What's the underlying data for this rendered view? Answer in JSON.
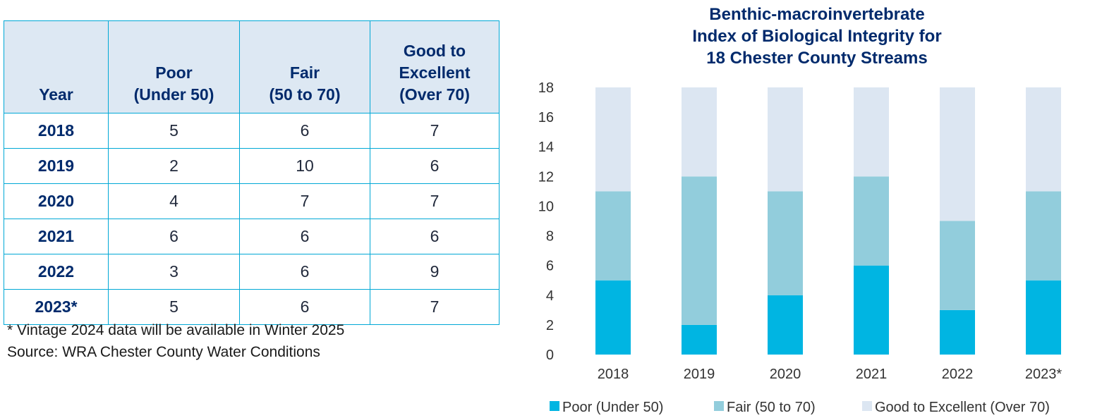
{
  "table": {
    "headers": [
      [
        "Year"
      ],
      [
        "Poor",
        "(Under 50)"
      ],
      [
        "Fair",
        "(50 to 70)"
      ],
      [
        "Good to",
        "Excellent",
        "(Over 70)"
      ]
    ],
    "rows": [
      [
        "2018",
        "5",
        "6",
        "7"
      ],
      [
        "2019",
        "2",
        "10",
        "6"
      ],
      [
        "2020",
        "4",
        "7",
        "7"
      ],
      [
        "2021",
        "6",
        "6",
        "6"
      ],
      [
        "2022",
        "3",
        "6",
        "9"
      ],
      [
        "2023*",
        "5",
        "6",
        "7"
      ]
    ]
  },
  "notes": {
    "vintage": "* Vintage 2024 data will be available in Winter 2025",
    "source": "Source: WRA Chester County Water Conditions"
  },
  "chart_data": {
    "type": "bar",
    "stacked": true,
    "title": [
      "Benthic-macroinvertebrate",
      "Index of Biological Integrity for",
      "18 Chester County Streams"
    ],
    "categories": [
      "2018",
      "2019",
      "2020",
      "2021",
      "2022",
      "2023*"
    ],
    "series": [
      {
        "name": "Poor (Under 50)",
        "values": [
          5,
          2,
          4,
          6,
          3,
          5
        ],
        "color": "#00b5e2"
      },
      {
        "name": "Fair (50 to 70)",
        "values": [
          6,
          10,
          7,
          6,
          6,
          6
        ],
        "color": "#92cddc"
      },
      {
        "name": "Good to Excellent (Over 70)",
        "values": [
          7,
          6,
          7,
          6,
          9,
          7
        ],
        "color": "#dce6f2"
      }
    ],
    "ylim": [
      0,
      18
    ],
    "yticks": [
      "0",
      "2",
      "4",
      "6",
      "8",
      "10",
      "12",
      "14",
      "16",
      "18"
    ],
    "legend": "bottom",
    "grid": false
  }
}
